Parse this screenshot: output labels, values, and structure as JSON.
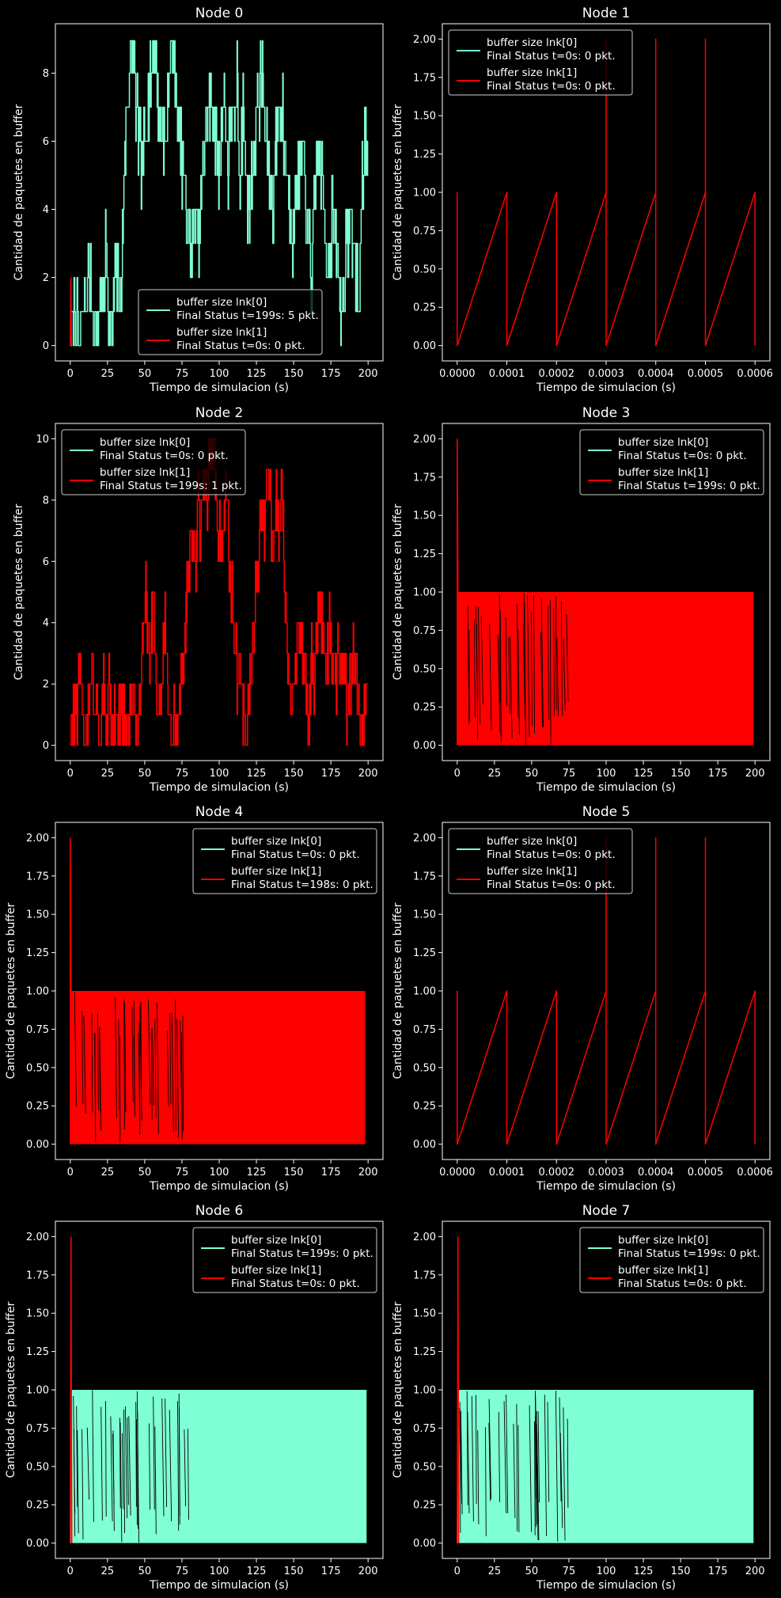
{
  "figure": {
    "background": "#000000",
    "fg": "#ffffff"
  },
  "colors": {
    "lnk0": "#7fffd4",
    "lnk1": "#ff0000"
  },
  "chart_data": [
    {
      "type": "line",
      "title": "Node 0",
      "xlabel": "Tiempo de simulacion (s)",
      "ylabel": "Cantidad de paquetes en buffer",
      "xlim": [
        -10,
        210
      ],
      "ylim": [
        -0.45,
        9.45
      ],
      "xticks": [
        0,
        25,
        50,
        75,
        100,
        125,
        150,
        175,
        200
      ],
      "xtick_labels": [
        "0",
        "25",
        "50",
        "75",
        "100",
        "125",
        "150",
        "175",
        "200"
      ],
      "yticks": [
        0,
        2,
        4,
        6,
        8
      ],
      "ytick_labels": [
        "0",
        "2",
        "4",
        "6",
        "8"
      ],
      "legend_loc": "lower-center",
      "series": [
        {
          "name": "buffer size lnk[0]",
          "final": "Final Status t=199s: 5 pkt.",
          "color": "#7fffd4",
          "style": "noisy",
          "x": [
            0,
            3,
            6,
            9,
            12,
            15,
            18,
            20,
            22,
            24,
            26,
            28,
            30,
            32,
            34,
            36,
            38,
            40,
            42,
            44,
            46,
            48,
            50,
            52,
            54,
            56,
            58,
            60,
            62,
            64,
            66,
            68,
            70,
            72,
            74,
            76,
            78,
            80,
            82,
            84,
            86,
            88,
            90,
            92,
            94,
            96,
            98,
            100,
            102,
            104,
            106,
            108,
            110,
            112,
            114,
            116,
            118,
            120,
            122,
            124,
            126,
            128,
            130,
            132,
            134,
            136,
            138,
            140,
            142,
            144,
            146,
            148,
            150,
            152,
            154,
            156,
            158,
            160,
            162,
            164,
            166,
            168,
            170,
            172,
            174,
            176,
            178,
            180,
            182,
            184,
            186,
            188,
            190,
            192,
            194,
            196,
            198,
            200
          ],
          "y": [
            0,
            1,
            0,
            1,
            2,
            1,
            0,
            2,
            1,
            3,
            1,
            0,
            2,
            2,
            1,
            5,
            7,
            8,
            9,
            7,
            6,
            5,
            6,
            7,
            8,
            9,
            8,
            6,
            7,
            5,
            8,
            9,
            8,
            7,
            6,
            5,
            4,
            3,
            3,
            4,
            3,
            4,
            6,
            7,
            7,
            7,
            6,
            5,
            7,
            7,
            5,
            7,
            6,
            8,
            5,
            7,
            5,
            4,
            5,
            6,
            7,
            8,
            7,
            6,
            5,
            4,
            6,
            7,
            7,
            6,
            5,
            4,
            3,
            5,
            5,
            6,
            4,
            3,
            2,
            4,
            6,
            5,
            4,
            3,
            2,
            4,
            3,
            2,
            1,
            2,
            3,
            4,
            3,
            2,
            1,
            5,
            6,
            5
          ]
        },
        {
          "name": "buffer size lnk[1]",
          "final": "Final Status t=0s: 0 pkt.",
          "color": "#ff0000",
          "style": "spike",
          "x": [
            0,
            0.4,
            0.8
          ],
          "y": [
            0,
            2,
            0
          ]
        }
      ]
    },
    {
      "type": "line",
      "title": "Node 1",
      "xlabel": "Tiempo de simulacion (s)",
      "ylabel": "Cantidad de paquetes en buffer",
      "xlim": [
        -3e-05,
        0.00063
      ],
      "ylim": [
        -0.1,
        2.1
      ],
      "xticks": [
        0,
        0.0001,
        0.0002,
        0.0003,
        0.0004,
        0.0005,
        0.0006
      ],
      "xtick_labels": [
        "0.0000",
        "0.0001",
        "0.0002",
        "0.0003",
        "0.0004",
        "0.0005",
        "0.0006"
      ],
      "yticks": [
        0,
        0.25,
        0.5,
        0.75,
        1,
        1.25,
        1.5,
        1.75,
        2
      ],
      "ytick_labels": [
        "0.00",
        "0.25",
        "0.50",
        "0.75",
        "1.00",
        "1.25",
        "1.50",
        "1.75",
        "2.00"
      ],
      "legend_loc": "upper-left",
      "series": [
        {
          "name": "buffer size lnk[0]",
          "final": "Final Status t=0s: 0 pkt.",
          "color": "#7fffd4",
          "style": "none",
          "x": [],
          "y": []
        },
        {
          "name": "buffer size lnk[1]",
          "final": "Final Status t=0s: 0 pkt.",
          "color": "#ff0000",
          "style": "line",
          "x": [
            0,
            0,
            0,
            0.0001,
            0.0001,
            0.0002,
            0.0002,
            0.0003,
            0.0003,
            0.0003,
            0.0004,
            0.0004,
            0.0004,
            0.0005,
            0.0005,
            0.0005,
            0.0006,
            0.0006
          ],
          "y": [
            1,
            0,
            0,
            1,
            0,
            1,
            0,
            1,
            2,
            0,
            1,
            2,
            0,
            1,
            2,
            0,
            1,
            0
          ]
        }
      ]
    },
    {
      "type": "line",
      "title": "Node 2",
      "xlabel": "Tiempo de simulacion (s)",
      "ylabel": "Cantidad de paquetes en buffer",
      "xlim": [
        -10,
        210
      ],
      "ylim": [
        -0.5,
        10.5
      ],
      "xticks": [
        0,
        25,
        50,
        75,
        100,
        125,
        150,
        175,
        200
      ],
      "xtick_labels": [
        "0",
        "25",
        "50",
        "75",
        "100",
        "125",
        "150",
        "175",
        "200"
      ],
      "yticks": [
        0,
        2,
        4,
        6,
        8,
        10
      ],
      "ytick_labels": [
        "0",
        "2",
        "4",
        "6",
        "8",
        "10"
      ],
      "legend_loc": "upper-left",
      "series": [
        {
          "name": "buffer size lnk[0]",
          "final": "Final Status t=0s: 0 pkt.",
          "color": "#7fffd4",
          "style": "none",
          "x": [],
          "y": []
        },
        {
          "name": "buffer size lnk[1]",
          "final": "Final Status t=199s: 1 pkt.",
          "color": "#ff0000",
          "style": "noisy",
          "x": [
            0,
            3,
            6,
            9,
            12,
            15,
            18,
            20,
            22,
            24,
            26,
            28,
            30,
            32,
            34,
            36,
            38,
            40,
            42,
            44,
            46,
            48,
            50,
            52,
            54,
            56,
            58,
            60,
            62,
            64,
            66,
            68,
            70,
            72,
            74,
            76,
            78,
            80,
            82,
            84,
            86,
            88,
            90,
            92,
            94,
            96,
            98,
            100,
            102,
            104,
            106,
            108,
            110,
            112,
            114,
            116,
            118,
            120,
            122,
            124,
            126,
            128,
            130,
            132,
            134,
            136,
            138,
            140,
            142,
            144,
            146,
            148,
            150,
            152,
            154,
            156,
            158,
            160,
            162,
            164,
            166,
            168,
            170,
            172,
            174,
            176,
            178,
            180,
            182,
            184,
            186,
            188,
            190,
            192,
            194,
            196,
            198,
            200
          ],
          "y": [
            0,
            1,
            2,
            0,
            1,
            2,
            1,
            0,
            2,
            1,
            2,
            0,
            1,
            0,
            2,
            1,
            0,
            1,
            2,
            0,
            1,
            3,
            5,
            4,
            3,
            5,
            2,
            1,
            3,
            4,
            1,
            0,
            1,
            0,
            2,
            3,
            5,
            6,
            7,
            6,
            8,
            7,
            9,
            8,
            9,
            10,
            8,
            7,
            6,
            8,
            7,
            5,
            4,
            2,
            3,
            1,
            0,
            2,
            3,
            5,
            6,
            8,
            7,
            9,
            8,
            6,
            8,
            7,
            8,
            5,
            3,
            1,
            2,
            3,
            4,
            3,
            2,
            1,
            3,
            2,
            4,
            5,
            3,
            2,
            4,
            3,
            2,
            3,
            2,
            3,
            1,
            2,
            3,
            2,
            1,
            0,
            1,
            2
          ]
        }
      ]
    },
    {
      "type": "line",
      "title": "Node 3",
      "xlabel": "Tiempo de simulacion (s)",
      "ylabel": "Cantidad de paquetes en buffer",
      "xlim": [
        -10,
        210
      ],
      "ylim": [
        -0.1,
        2.1
      ],
      "xticks": [
        0,
        25,
        50,
        75,
        100,
        125,
        150,
        175,
        200
      ],
      "xtick_labels": [
        "0",
        "25",
        "50",
        "75",
        "100",
        "125",
        "150",
        "175",
        "200"
      ],
      "yticks": [
        0,
        0.25,
        0.5,
        0.75,
        1,
        1.25,
        1.5,
        1.75,
        2
      ],
      "ytick_labels": [
        "0.00",
        "0.25",
        "0.50",
        "0.75",
        "1.00",
        "1.25",
        "1.50",
        "1.75",
        "2.00"
      ],
      "legend_loc": "upper-right",
      "series": [
        {
          "name": "buffer size lnk[0]",
          "final": "Final Status t=0s: 0 pkt.",
          "color": "#7fffd4",
          "style": "none",
          "x": [],
          "y": []
        },
        {
          "name": "buffer size lnk[1]",
          "final": "Final Status t=199s: 0 pkt.",
          "color": "#ff0000",
          "style": "dense",
          "x": [
            0,
            199
          ],
          "y": [
            0,
            1
          ],
          "spike": [
            0,
            2
          ]
        }
      ]
    },
    {
      "type": "line",
      "title": "Node 4",
      "xlabel": "Tiempo de simulacion (s)",
      "ylabel": "Cantidad de paquetes en buffer",
      "xlim": [
        -10,
        210
      ],
      "ylim": [
        -0.1,
        2.1
      ],
      "xticks": [
        0,
        25,
        50,
        75,
        100,
        125,
        150,
        175,
        200
      ],
      "xtick_labels": [
        "0",
        "25",
        "50",
        "75",
        "100",
        "125",
        "150",
        "175",
        "200"
      ],
      "yticks": [
        0,
        0.25,
        0.5,
        0.75,
        1,
        1.25,
        1.5,
        1.75,
        2
      ],
      "ytick_labels": [
        "0.00",
        "0.25",
        "0.50",
        "0.75",
        "1.00",
        "1.25",
        "1.50",
        "1.75",
        "2.00"
      ],
      "legend_loc": "upper-right",
      "series": [
        {
          "name": "buffer size lnk[0]",
          "final": "Final Status t=0s: 0 pkt.",
          "color": "#7fffd4",
          "style": "none",
          "x": [],
          "y": []
        },
        {
          "name": "buffer size lnk[1]",
          "final": "Final Status t=198s: 0 pkt.",
          "color": "#ff0000",
          "style": "dense",
          "x": [
            0,
            198
          ],
          "y": [
            0,
            1
          ],
          "spike": [
            0,
            2
          ]
        }
      ]
    },
    {
      "type": "line",
      "title": "Node 5",
      "xlabel": "Tiempo de simulacion (s)",
      "ylabel": "Cantidad de paquetes en buffer",
      "xlim": [
        -3e-05,
        0.00063
      ],
      "ylim": [
        -0.1,
        2.1
      ],
      "xticks": [
        0,
        0.0001,
        0.0002,
        0.0003,
        0.0004,
        0.0005,
        0.0006
      ],
      "xtick_labels": [
        "0.0000",
        "0.0001",
        "0.0002",
        "0.0003",
        "0.0004",
        "0.0005",
        "0.0006"
      ],
      "yticks": [
        0,
        0.25,
        0.5,
        0.75,
        1,
        1.25,
        1.5,
        1.75,
        2
      ],
      "ytick_labels": [
        "0.00",
        "0.25",
        "0.50",
        "0.75",
        "1.00",
        "1.25",
        "1.50",
        "1.75",
        "2.00"
      ],
      "legend_loc": "upper-left",
      "series": [
        {
          "name": "buffer size lnk[0]",
          "final": "Final Status t=0s: 0 pkt.",
          "color": "#7fffd4",
          "style": "none",
          "x": [],
          "y": []
        },
        {
          "name": "buffer size lnk[1]",
          "final": "Final Status t=0s: 0 pkt.",
          "color": "#ff0000",
          "style": "line",
          "x": [
            0,
            0,
            0,
            0.0001,
            0.0001,
            0.0002,
            0.0002,
            0.0003,
            0.0003,
            0.0003,
            0.0004,
            0.0004,
            0.0004,
            0.0005,
            0.0005,
            0.0005,
            0.0006,
            0.0006
          ],
          "y": [
            1,
            0,
            0,
            1,
            0,
            1,
            0,
            1,
            2,
            0,
            1,
            2,
            0,
            1,
            2,
            0,
            1,
            0
          ]
        }
      ]
    },
    {
      "type": "line",
      "title": "Node 6",
      "xlabel": "Tiempo de simulacion (s)",
      "ylabel": "Cantidad de paquetes en buffer",
      "xlim": [
        -10,
        210
      ],
      "ylim": [
        -0.1,
        2.1
      ],
      "xticks": [
        0,
        25,
        50,
        75,
        100,
        125,
        150,
        175,
        200
      ],
      "xtick_labels": [
        "0",
        "25",
        "50",
        "75",
        "100",
        "125",
        "150",
        "175",
        "200"
      ],
      "yticks": [
        0,
        0.25,
        0.5,
        0.75,
        1,
        1.25,
        1.5,
        1.75,
        2
      ],
      "ytick_labels": [
        "0.00",
        "0.25",
        "0.50",
        "0.75",
        "1.00",
        "1.25",
        "1.50",
        "1.75",
        "2.00"
      ],
      "legend_loc": "upper-right",
      "series": [
        {
          "name": "buffer size lnk[0]",
          "final": "Final Status t=199s: 0 pkt.",
          "color": "#7fffd4",
          "style": "dense",
          "x": [
            0,
            199
          ],
          "y": [
            0,
            1
          ]
        },
        {
          "name": "buffer size lnk[1]",
          "final": "Final Status t=0s: 0 pkt.",
          "color": "#ff0000",
          "style": "spike",
          "x": [
            0,
            0.5,
            1
          ],
          "y": [
            0,
            2,
            0
          ]
        }
      ]
    },
    {
      "type": "line",
      "title": "Node 7",
      "xlabel": "Tiempo de simulacion (s)",
      "ylabel": "Cantidad de paquetes en buffer",
      "xlim": [
        -10,
        210
      ],
      "ylim": [
        -0.1,
        2.1
      ],
      "xticks": [
        0,
        25,
        50,
        75,
        100,
        125,
        150,
        175,
        200
      ],
      "xtick_labels": [
        "0",
        "25",
        "50",
        "75",
        "100",
        "125",
        "150",
        "175",
        "200"
      ],
      "yticks": [
        0,
        0.25,
        0.5,
        0.75,
        1,
        1.25,
        1.5,
        1.75,
        2
      ],
      "ytick_labels": [
        "0.00",
        "0.25",
        "0.50",
        "0.75",
        "1.00",
        "1.25",
        "1.50",
        "1.75",
        "2.00"
      ],
      "legend_loc": "upper-right",
      "series": [
        {
          "name": "buffer size lnk[0]",
          "final": "Final Status t=199s: 0 pkt.",
          "color": "#7fffd4",
          "style": "dense",
          "x": [
            0,
            199
          ],
          "y": [
            0,
            1
          ]
        },
        {
          "name": "buffer size lnk[1]",
          "final": "Final Status t=0s: 0 pkt.",
          "color": "#ff0000",
          "style": "spike",
          "x": [
            0,
            0.5,
            1
          ],
          "y": [
            0,
            2,
            0
          ]
        }
      ]
    }
  ]
}
